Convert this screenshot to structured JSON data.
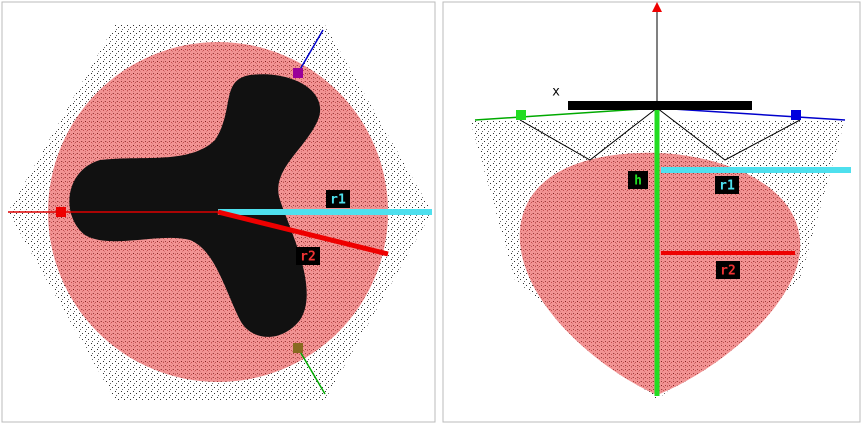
{
  "top_view": {
    "r1_label": "r1",
    "r2_label": "r2"
  },
  "side_view": {
    "axis_label": "x",
    "h_label": "h",
    "r1_label": "r1",
    "r2_label": "r2"
  }
}
